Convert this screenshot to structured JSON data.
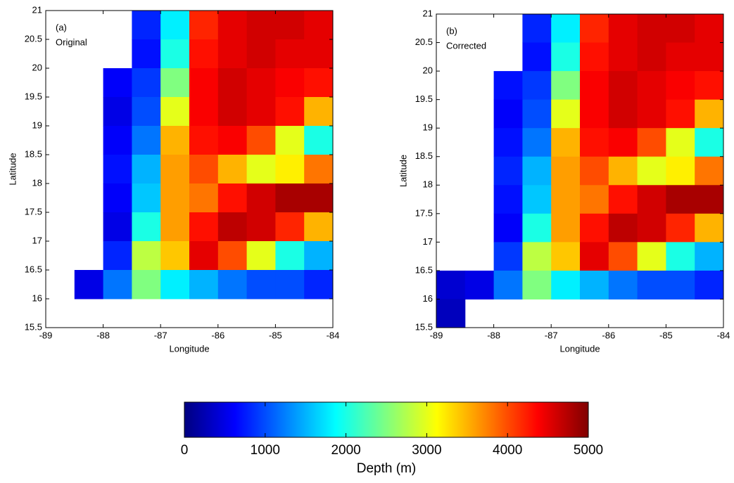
{
  "chart_data": [
    {
      "type": "heatmap",
      "annotations": [
        "(a)",
        "Original"
      ],
      "x_label": "Longitude",
      "y_label": "Latitude",
      "x": [
        -88.75,
        -88.25,
        -87.75,
        -87.25,
        -86.75,
        -86.25,
        -85.75,
        -85.25,
        -84.75,
        -84.25
      ],
      "y": [
        20.75,
        20.25,
        19.75,
        19.25,
        18.75,
        18.25,
        17.75,
        17.25,
        16.75,
        16.25,
        15.75
      ],
      "z": [
        [
          null,
          null,
          null,
          800,
          1800,
          4200,
          4500,
          4600,
          4600,
          4500
        ],
        [
          null,
          null,
          null,
          700,
          2000,
          4300,
          4500,
          4600,
          4500,
          4500
        ],
        [
          null,
          null,
          600,
          900,
          2500,
          4400,
          4600,
          4500,
          4400,
          4300
        ],
        [
          null,
          null,
          500,
          1000,
          3000,
          4400,
          4600,
          4500,
          4300,
          3500
        ],
        [
          null,
          null,
          600,
          1200,
          3500,
          4300,
          4400,
          4000,
          3000,
          2000
        ],
        [
          null,
          null,
          700,
          1500,
          3600,
          4000,
          3500,
          3000,
          3200,
          3800
        ],
        [
          null,
          null,
          600,
          1600,
          3600,
          3800,
          4300,
          4600,
          4800,
          4800
        ],
        [
          null,
          null,
          500,
          2000,
          3600,
          4300,
          4700,
          4600,
          4200,
          3500
        ],
        [
          null,
          null,
          800,
          2800,
          3400,
          4500,
          4000,
          3000,
          2000,
          1500
        ],
        [
          null,
          500,
          1200,
          2500,
          1800,
          1500,
          1200,
          1000,
          1000,
          800
        ],
        [
          null,
          null,
          null,
          null,
          null,
          null,
          null,
          null,
          null,
          null
        ]
      ],
      "xlim": [
        -89,
        -84
      ],
      "ylim": [
        15.5,
        21
      ],
      "xticks": [
        -89,
        -88,
        -87,
        -86,
        -85,
        -84
      ],
      "yticks": [
        15.5,
        16,
        16.5,
        17,
        17.5,
        18,
        18.5,
        19,
        19.5,
        20,
        20.5,
        21
      ],
      "colormap": "jet",
      "clim": [
        0,
        5000
      ]
    },
    {
      "type": "heatmap",
      "annotations": [
        "(b)",
        "Corrected"
      ],
      "x_label": "Longitude",
      "y_label": "Latitude",
      "x": [
        -88.75,
        -88.25,
        -87.75,
        -87.25,
        -86.75,
        -86.25,
        -85.75,
        -85.25,
        -84.75,
        -84.25
      ],
      "y": [
        20.75,
        20.25,
        19.75,
        19.25,
        18.75,
        18.25,
        17.75,
        17.25,
        16.75,
        16.25,
        15.75
      ],
      "z": [
        [
          null,
          null,
          null,
          800,
          1800,
          4200,
          4500,
          4600,
          4600,
          4500
        ],
        [
          null,
          null,
          null,
          700,
          2000,
          4300,
          4500,
          4600,
          4500,
          4500
        ],
        [
          null,
          null,
          700,
          900,
          2500,
          4400,
          4600,
          4500,
          4400,
          4300
        ],
        [
          null,
          null,
          600,
          1000,
          3000,
          4400,
          4600,
          4500,
          4300,
          3500
        ],
        [
          null,
          null,
          700,
          1200,
          3500,
          4300,
          4400,
          4000,
          3000,
          2000
        ],
        [
          null,
          null,
          800,
          1500,
          3600,
          4000,
          3500,
          3000,
          3200,
          3800
        ],
        [
          null,
          null,
          700,
          1600,
          3600,
          3800,
          4300,
          4600,
          4800,
          4800
        ],
        [
          null,
          null,
          600,
          2000,
          3600,
          4300,
          4700,
          4600,
          4200,
          3500
        ],
        [
          null,
          null,
          900,
          2800,
          3400,
          4500,
          4000,
          3000,
          2000,
          1500
        ],
        [
          400,
          500,
          1200,
          2500,
          1800,
          1500,
          1200,
          1000,
          1000,
          800
        ],
        [
          300,
          null,
          null,
          null,
          null,
          null,
          null,
          null,
          null,
          null
        ]
      ],
      "xlim": [
        -89,
        -84
      ],
      "ylim": [
        15.5,
        21
      ],
      "xticks": [
        -89,
        -88,
        -87,
        -86,
        -85,
        -84
      ],
      "yticks": [
        15.5,
        16,
        16.5,
        17,
        17.5,
        18,
        18.5,
        19,
        19.5,
        20,
        20.5,
        21
      ],
      "colormap": "jet",
      "clim": [
        0,
        5000
      ]
    },
    {
      "type": "colorbar",
      "label": "Depth (m)",
      "lim": [
        0,
        5000
      ],
      "ticks": [
        0,
        1000,
        2000,
        3000,
        4000,
        5000
      ],
      "colormap": "jet"
    }
  ]
}
